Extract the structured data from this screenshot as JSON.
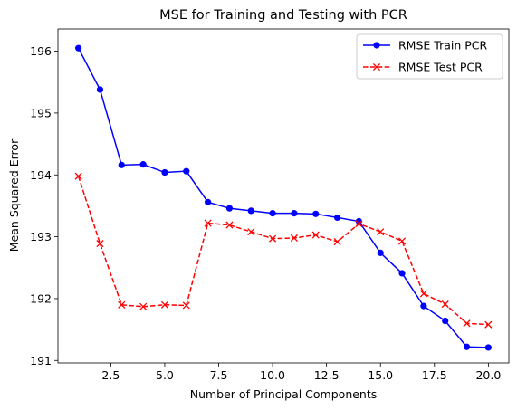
{
  "chart_data": {
    "type": "line",
    "title": "MSE for Training and Testing with PCR",
    "xlabel": "Number of Principal Components",
    "ylabel": "Mean Squared Error",
    "xlim": [
      0.05,
      20.95
    ],
    "ylim": [
      190.96,
      196.36
    ],
    "xticks": [
      2.5,
      5.0,
      7.5,
      10.0,
      12.5,
      15.0,
      17.5,
      20.0
    ],
    "xtick_labels": [
      "2.5",
      "5.0",
      "7.5",
      "10.0",
      "12.5",
      "15.0",
      "17.5",
      "20.0"
    ],
    "yticks": [
      191,
      192,
      193,
      194,
      195,
      196
    ],
    "ytick_labels": [
      "191",
      "192",
      "193",
      "194",
      "195",
      "196"
    ],
    "grid": false,
    "legend_position": "top-right",
    "x": [
      1,
      2,
      3,
      4,
      5,
      6,
      7,
      8,
      9,
      10,
      11,
      12,
      13,
      14,
      15,
      16,
      17,
      18,
      19,
      20
    ],
    "series": [
      {
        "name": "RMSE Train PCR",
        "color": "#0000ff",
        "line_style": "solid",
        "marker": "circle",
        "values": [
          196.05,
          195.38,
          194.16,
          194.17,
          194.04,
          194.06,
          193.56,
          193.46,
          193.42,
          193.38,
          193.38,
          193.37,
          193.31,
          193.25,
          192.74,
          192.41,
          191.88,
          191.64,
          191.22,
          191.21
        ]
      },
      {
        "name": "RMSE Test PCR",
        "color": "#ff0000",
        "line_style": "dashed",
        "marker": "x",
        "values": [
          193.98,
          192.89,
          191.9,
          191.87,
          191.9,
          191.89,
          193.22,
          193.19,
          193.08,
          192.97,
          192.98,
          193.03,
          192.92,
          193.21,
          193.08,
          192.93,
          192.08,
          191.91,
          191.6,
          191.58
        ]
      }
    ]
  }
}
